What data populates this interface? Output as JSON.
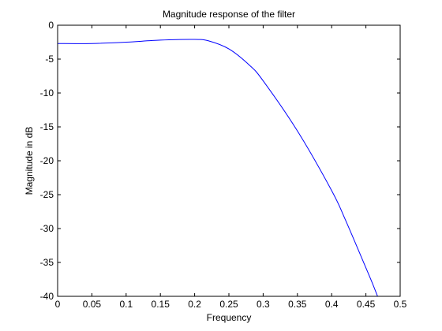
{
  "chart_data": {
    "type": "line",
    "title": "Magnitude response of the filter",
    "xlabel": "Frequency",
    "ylabel": "Magnitude in dB",
    "xlim": [
      0,
      0.5
    ],
    "ylim": [
      -40,
      0
    ],
    "xticks": [
      0,
      0.05,
      0.1,
      0.15,
      0.2,
      0.25,
      0.3,
      0.35,
      0.4,
      0.45,
      0.5
    ],
    "xtick_labels": [
      "0",
      "0.05",
      "0.1",
      "0.15",
      "0.2",
      "0.25",
      "0.3",
      "0.35",
      "0.4",
      "0.45",
      "0.5"
    ],
    "yticks": [
      0,
      -5,
      -10,
      -15,
      -20,
      -25,
      -30,
      -35,
      -40
    ],
    "ytick_labels": [
      "0",
      "-5",
      "-10",
      "-15",
      "-20",
      "-25",
      "-30",
      "-35",
      "-40"
    ],
    "grid": false,
    "series": [
      {
        "color": "#0000ff",
        "x": [
          0,
          0.05,
          0.1,
          0.15,
          0.2,
          0.22,
          0.25,
          0.28,
          0.3,
          0.35,
          0.4,
          0.42,
          0.45,
          0.46,
          0.467
        ],
        "y": [
          -2.7,
          -2.7,
          -2.5,
          -2.2,
          -2.1,
          -2.3,
          -3.5,
          -5.9,
          -8.2,
          -15.6,
          -24.4,
          -28.7,
          -35.8,
          -38.2,
          -40
        ]
      }
    ]
  }
}
